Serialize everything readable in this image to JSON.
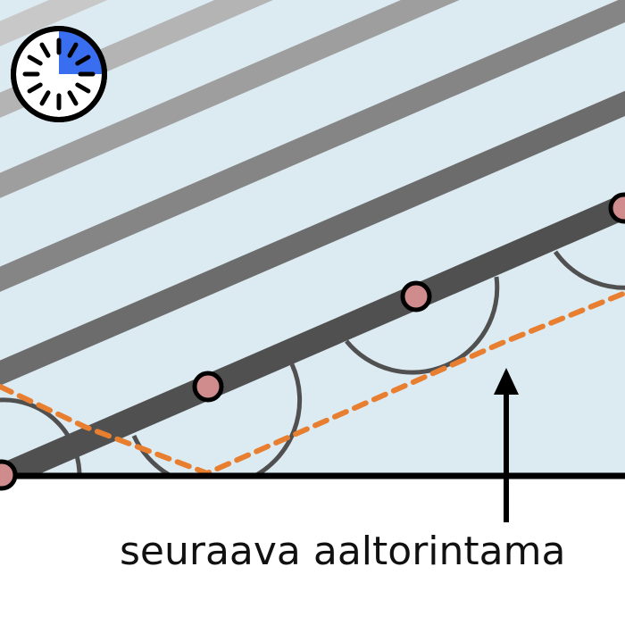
{
  "caption": "seuraava aaltorintama",
  "timer": {
    "icon": "clock-icon",
    "fraction_elapsed": 0.25,
    "fill_color": "#3a6ef0"
  },
  "colors": {
    "medium": "#dcebf2",
    "wavelet": "#505050",
    "envelope": "#e87e30",
    "source": "#d08c8c",
    "boundary": "#000000"
  }
}
